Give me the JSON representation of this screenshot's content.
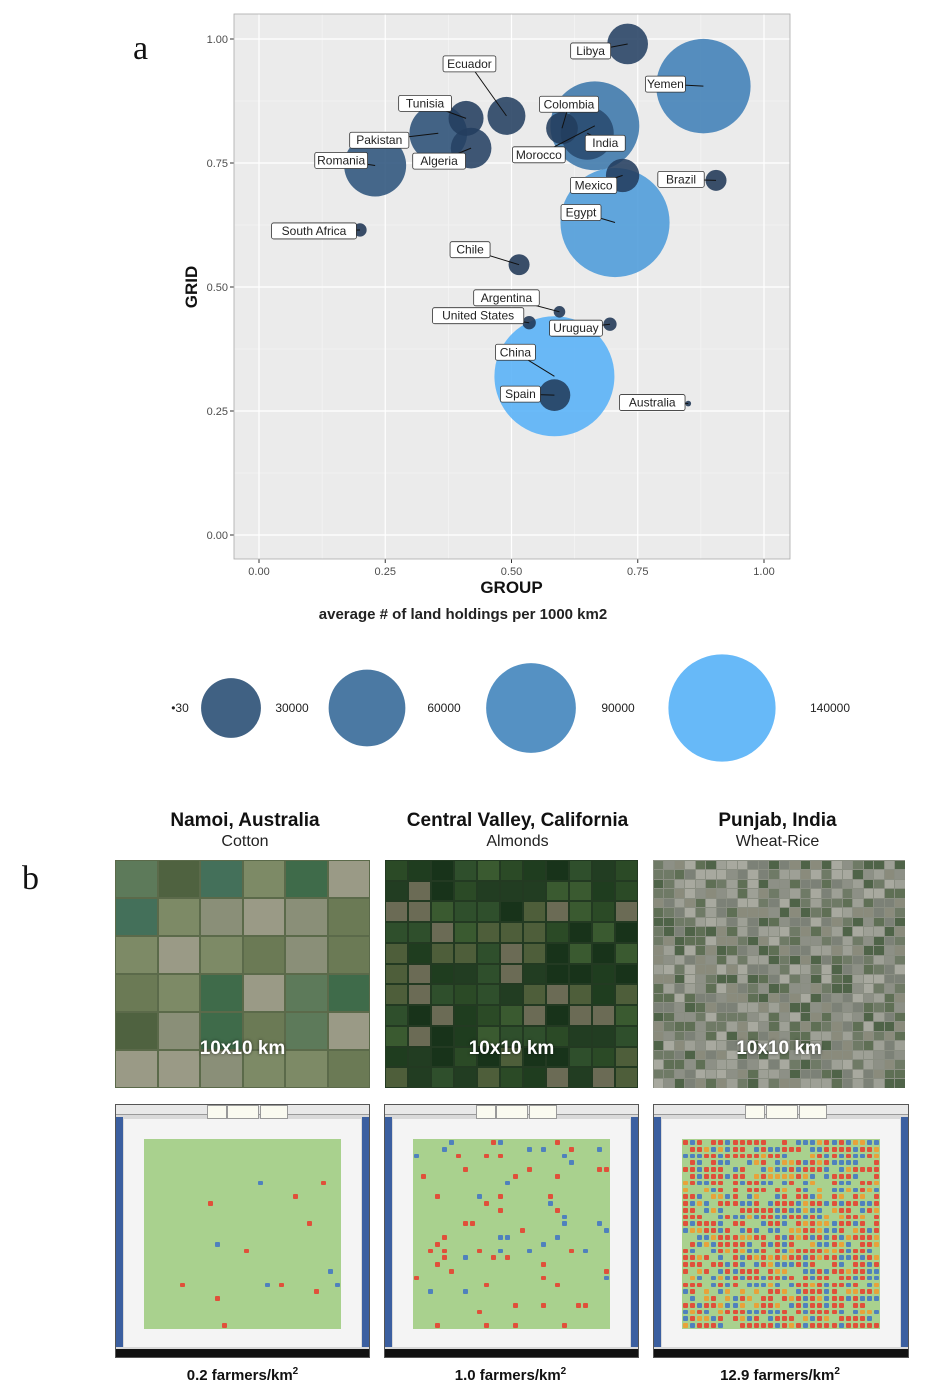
{
  "panel_a_letter": "a",
  "panel_b_letter": "b",
  "chart_data": {
    "type": "scatter",
    "xlabel": "GROUP",
    "ylabel": "GRID",
    "xlim": [
      0,
      1
    ],
    "ylim": [
      0,
      1
    ],
    "x_ticks": [
      "0.00",
      "0.25",
      "0.50",
      "0.75",
      "1.00"
    ],
    "y_ticks": [
      "0.00",
      "0.25",
      "0.50",
      "0.75",
      "1.00"
    ],
    "grid": true,
    "size_legend_title": "average # of land holdings per 1000 km2",
    "size_legend": [
      "30",
      "30000",
      "60000",
      "90000",
      "140000"
    ],
    "points": [
      {
        "name": "Libya",
        "x": 0.73,
        "y": 0.99,
        "size": 14000
      },
      {
        "name": "India",
        "x": 0.65,
        "y": 0.81,
        "size": 25000
      },
      {
        "name": "Yemen",
        "x": 0.88,
        "y": 0.905,
        "size": 85000
      },
      {
        "name": "Ecuador",
        "x": 0.49,
        "y": 0.845,
        "size": 12000
      },
      {
        "name": "Colombia",
        "x": 0.6,
        "y": 0.82,
        "size": 8000
      },
      {
        "name": "Tunisia",
        "x": 0.41,
        "y": 0.84,
        "size": 10000
      },
      {
        "name": "Pakistan",
        "x": 0.355,
        "y": 0.81,
        "size": 30000
      },
      {
        "name": "Algeria",
        "x": 0.42,
        "y": 0.78,
        "size": 14000
      },
      {
        "name": "Morocco",
        "x": 0.665,
        "y": 0.825,
        "size": 75000
      },
      {
        "name": "Romania",
        "x": 0.23,
        "y": 0.745,
        "size": 35000
      },
      {
        "name": "Mexico",
        "x": 0.72,
        "y": 0.725,
        "size": 9000
      },
      {
        "name": "Brazil",
        "x": 0.905,
        "y": 0.715,
        "size": 3000
      },
      {
        "name": "Egypt",
        "x": 0.705,
        "y": 0.63,
        "size": 115000
      },
      {
        "name": "South Africa",
        "x": 0.2,
        "y": 0.615,
        "size": 900
      },
      {
        "name": "Chile",
        "x": 0.515,
        "y": 0.545,
        "size": 3000
      },
      {
        "name": "Argentina",
        "x": 0.595,
        "y": 0.45,
        "size": 600
      },
      {
        "name": "United States",
        "x": 0.535,
        "y": 0.428,
        "size": 900
      },
      {
        "name": "Uruguay",
        "x": 0.695,
        "y": 0.425,
        "size": 900
      },
      {
        "name": "China",
        "x": 0.585,
        "y": 0.32,
        "size": 140000
      },
      {
        "name": "Spain",
        "x": 0.585,
        "y": 0.282,
        "size": 8000
      },
      {
        "name": "Australia",
        "x": 0.85,
        "y": 0.265,
        "size": 30
      }
    ]
  },
  "regions": [
    {
      "title": "Namoi, Australia",
      "crop": "Cotton",
      "scale": "10x10 km",
      "density": "0.2 farmers/km",
      "density_sup": "2"
    },
    {
      "title": "Central Valley, California",
      "crop": "Almonds",
      "scale": "10x10 km",
      "density": "1.0 farmers/km",
      "density_sup": "2"
    },
    {
      "title": "Punjab, India",
      "crop": "Wheat-Rice",
      "scale": "10x10 km",
      "density": "12.9 farmers/km",
      "density_sup": "2"
    }
  ],
  "colors": {
    "bubble_dark": "#1f3553",
    "bubble_light": "#56b1f7",
    "panel_bg": "#ebebeb",
    "sim_field": "#a9d18e",
    "sim_red": "#e0503a",
    "sim_blue": "#4f81bd"
  }
}
